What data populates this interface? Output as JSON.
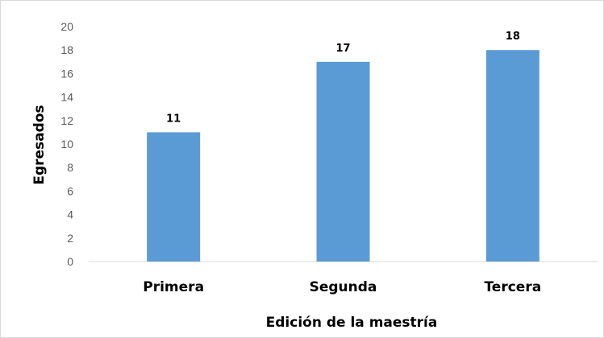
{
  "chart_data": {
    "type": "bar",
    "categories": [
      "Primera",
      "Segunda",
      "Tercera"
    ],
    "values": [
      11,
      17,
      18
    ],
    "data_labels": [
      "11",
      "17",
      "18"
    ],
    "xlabel": "Edición de la maestría",
    "ylabel": "Egresados",
    "ylim": [
      0,
      20
    ],
    "yticks": [
      0,
      2,
      4,
      6,
      8,
      10,
      12,
      14,
      16,
      18,
      20
    ],
    "grid": false,
    "legend": "none",
    "bar_color": "#5b9bd5",
    "axis_color": "#d9d9d9"
  }
}
